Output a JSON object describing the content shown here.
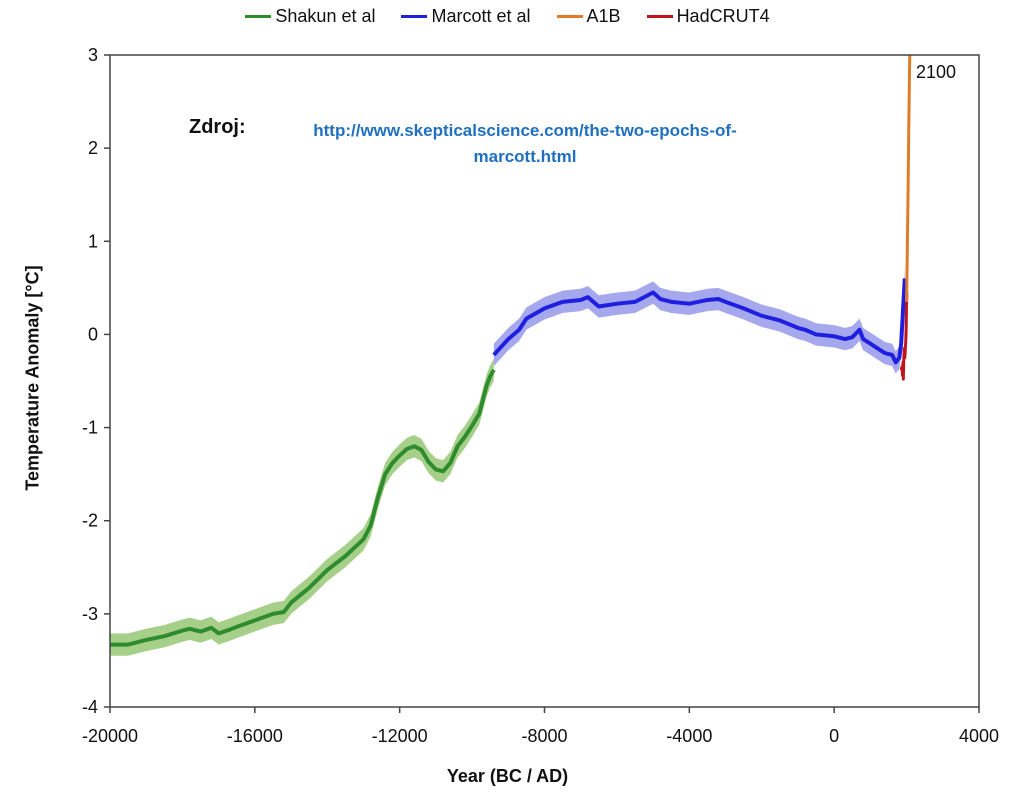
{
  "legend": [
    {
      "name": "Shakun et al",
      "color": "#2e8b2e"
    },
    {
      "name": "Marcott et al",
      "color": "#1f1fe0"
    },
    {
      "name": "A1B",
      "color": "#e07b29"
    },
    {
      "name": "HadCRUT4",
      "color": "#c0141c"
    }
  ],
  "source": {
    "label": "Zdroj:",
    "link": "http://www.skepticalscience.com/the-two-epochs-of-marcott.html"
  },
  "annotation": "2100",
  "chart_data": {
    "type": "line",
    "xlabel": "Year (BC / AD)",
    "ylabel": "Temperature Anomaly [°C]",
    "xlim": [
      -20000,
      4000
    ],
    "ylim": [
      -4,
      3
    ],
    "xticks": [
      -20000,
      -16000,
      -12000,
      -8000,
      -4000,
      0,
      4000
    ],
    "yticks": [
      3,
      2,
      1,
      0,
      -1,
      -2,
      -3,
      -4
    ],
    "grid": false,
    "legend_position": "top",
    "series": [
      {
        "name": "Shakun et al",
        "color": "#2e8b2e",
        "band_color": "#a6d08a",
        "band": 0.12,
        "x": [
          -20000,
          -19500,
          -19000,
          -18500,
          -18000,
          -17800,
          -17500,
          -17200,
          -17000,
          -16700,
          -16500,
          -16000,
          -15500,
          -15200,
          -15000,
          -14500,
          -14000,
          -13500,
          -13000,
          -12800,
          -12600,
          -12400,
          -12200,
          -12000,
          -11800,
          -11600,
          -11400,
          -11200,
          -11000,
          -10800,
          -10600,
          -10400,
          -10200,
          -10000,
          -9800,
          -9600,
          -9500,
          -9400
        ],
        "y": [
          -3.33,
          -3.33,
          -3.28,
          -3.24,
          -3.18,
          -3.16,
          -3.19,
          -3.15,
          -3.21,
          -3.17,
          -3.14,
          -3.07,
          -3.0,
          -2.98,
          -2.88,
          -2.72,
          -2.53,
          -2.38,
          -2.2,
          -2.05,
          -1.75,
          -1.5,
          -1.38,
          -1.3,
          -1.23,
          -1.2,
          -1.24,
          -1.37,
          -1.45,
          -1.47,
          -1.38,
          -1.2,
          -1.1,
          -0.98,
          -0.85,
          -0.55,
          -0.45,
          -0.38
        ]
      },
      {
        "name": "Marcott et al",
        "color": "#1f1fe0",
        "band_color": "#a6a8ee",
        "band": 0.12,
        "x": [
          -9400,
          -9000,
          -8700,
          -8500,
          -8000,
          -7500,
          -7000,
          -6800,
          -6500,
          -6000,
          -5500,
          -5000,
          -4800,
          -4500,
          -4000,
          -3500,
          -3200,
          -3000,
          -2500,
          -2000,
          -1500,
          -1000,
          -800,
          -500,
          0,
          300,
          500,
          700,
          800,
          1000,
          1200,
          1400,
          1600,
          1700,
          1800,
          1850,
          1900,
          1950
        ],
        "y": [
          -0.22,
          -0.05,
          0.05,
          0.17,
          0.28,
          0.35,
          0.37,
          0.4,
          0.3,
          0.33,
          0.35,
          0.45,
          0.38,
          0.35,
          0.33,
          0.37,
          0.38,
          0.35,
          0.28,
          0.2,
          0.15,
          0.07,
          0.05,
          0.0,
          -0.02,
          -0.05,
          -0.03,
          0.05,
          -0.05,
          -0.1,
          -0.15,
          -0.2,
          -0.22,
          -0.3,
          -0.25,
          -0.1,
          0.25,
          0.6
        ]
      },
      {
        "name": "HadCRUT4",
        "color": "#c0141c",
        "x": [
          1850,
          1870,
          1890,
          1900,
          1910,
          1920,
          1940,
          1950,
          1960,
          1980,
          1990,
          2000,
          2010
        ],
        "y": [
          -0.38,
          -0.35,
          -0.44,
          -0.3,
          -0.48,
          -0.28,
          -0.15,
          -0.25,
          -0.2,
          -0.05,
          0.1,
          0.35,
          0.45
        ]
      },
      {
        "name": "A1B",
        "color": "#e07b29",
        "x": [
          2000,
          2020,
          2040,
          2060,
          2080,
          2100
        ],
        "y": [
          0.35,
          0.9,
          1.5,
          2.2,
          2.8,
          3.3
        ]
      }
    ]
  }
}
